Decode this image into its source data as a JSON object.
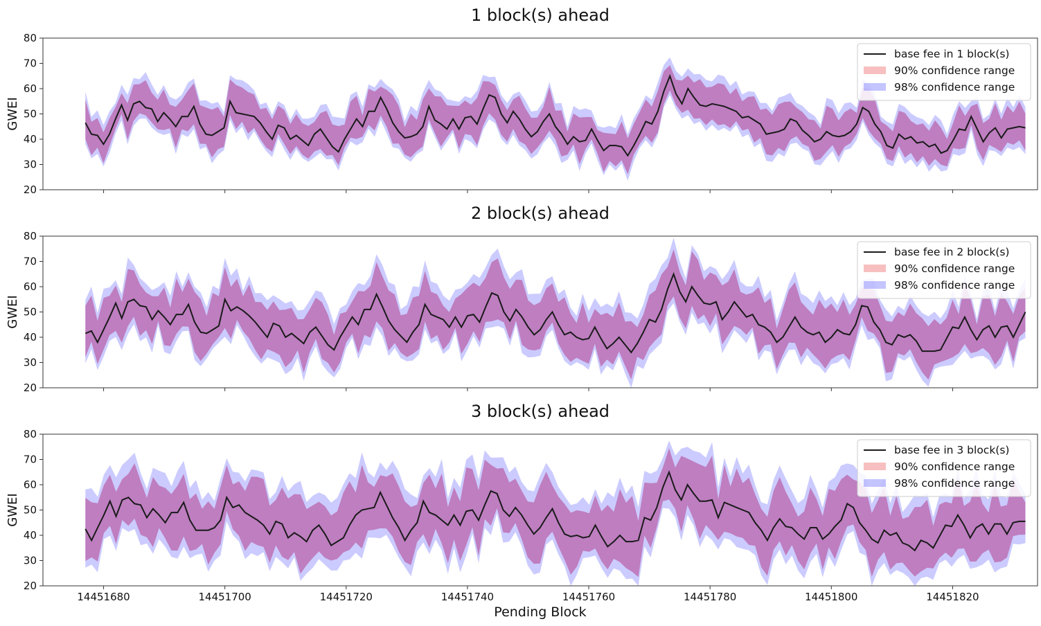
{
  "figure": {
    "xlabel": "Pending Block",
    "xticks": [
      "14451680",
      "14451700",
      "14451720",
      "14451740",
      "14451760",
      "14451780",
      "14451800",
      "14451820"
    ]
  },
  "colors": {
    "line": "#1a1a1a",
    "band90": "#f08080",
    "band98": "#6b6bff",
    "axis": "#333333"
  },
  "chart_data": [
    {
      "type": "line",
      "title": "1 block(s) ahead",
      "ylabel": "GWEI",
      "xlim": [
        14451670,
        14451834
      ],
      "ylim": [
        20,
        80
      ],
      "yticks": [
        20,
        30,
        40,
        50,
        60,
        70,
        80
      ],
      "legend_position": "top-right",
      "legend": [
        "base fee in 1 block(s)",
        "90% confidence range",
        "98% confidence range"
      ],
      "x_start": 14451677,
      "x_end": 14451832,
      "series": [
        {
          "name": "base fee in 1 block(s)",
          "values": [
            46.5,
            42,
            41.5,
            38,
            42,
            48,
            53.5,
            47.5,
            54,
            55,
            52.5,
            52,
            47,
            50.5,
            48,
            45,
            49,
            49,
            53,
            46,
            42,
            41.5,
            43,
            44.5,
            55,
            50.5,
            50,
            49.5,
            49,
            46.5,
            43,
            40,
            45.5,
            44.5,
            40,
            41.5,
            39.5,
            37.5,
            42,
            44,
            40.5,
            37,
            35,
            40,
            44,
            48,
            45,
            51,
            51,
            56.5,
            52,
            46.5,
            43,
            40.5,
            41,
            42,
            45,
            53,
            47.5,
            46,
            44,
            48,
            44,
            48.5,
            49,
            46,
            52,
            57.5,
            56.5,
            50,
            46.5,
            51,
            48,
            44,
            41,
            43,
            47,
            50,
            45,
            42,
            38,
            41,
            39,
            39.5,
            44,
            39.5,
            35.5,
            37.5,
            37.5,
            37,
            33.5,
            37.5,
            42,
            47,
            46,
            51,
            59,
            65,
            58,
            54,
            60,
            56.5,
            53.5,
            53,
            54,
            53.5,
            53,
            52,
            51,
            48.5,
            49,
            47.5,
            46,
            42,
            42.5,
            43,
            44,
            48,
            47,
            43.5,
            41.5,
            39,
            40,
            43,
            41.5,
            41,
            41.5,
            43,
            46,
            52.5,
            51,
            46,
            43,
            37.5,
            36.5,
            42,
            40,
            41,
            38.5,
            39,
            37,
            38,
            34.5,
            35.5,
            39.5,
            44,
            43.5,
            49,
            44,
            39,
            42.5,
            44.5,
            40.5,
            44,
            44.5,
            45,
            44.5
          ]
        }
      ]
    },
    {
      "type": "line",
      "title": "2 block(s) ahead",
      "ylabel": "GWEI",
      "xlim": [
        14451670,
        14451834
      ],
      "ylim": [
        20,
        80
      ],
      "yticks": [
        20,
        30,
        40,
        50,
        60,
        70,
        80
      ],
      "legend_position": "top-right",
      "legend": [
        "base fee in 2 block(s)",
        "90% confidence range",
        "98% confidence range"
      ],
      "x_start": 14451677,
      "x_end": 14451832,
      "series": [
        {
          "name": "base fee in 2 block(s)",
          "values": [
            41.5,
            42.5,
            38,
            43,
            48,
            53.5,
            47.5,
            54,
            55,
            52.5,
            52,
            47,
            50.5,
            48,
            45,
            49,
            49,
            53,
            46,
            42,
            41.5,
            43,
            44.5,
            55,
            50.5,
            52,
            50.5,
            48.5,
            46,
            43,
            40,
            45.5,
            44.5,
            40,
            41.5,
            39.5,
            37.5,
            42,
            44,
            40.5,
            37,
            35,
            40,
            44,
            48,
            45,
            51,
            51,
            57,
            52,
            46.5,
            43,
            40.5,
            38,
            42,
            45,
            53,
            49,
            48,
            47,
            44,
            48,
            44,
            48.5,
            49,
            46,
            52,
            57.5,
            56.5,
            50,
            46.5,
            51,
            48,
            44,
            41,
            43,
            47,
            50,
            45,
            41,
            42,
            40,
            39,
            39.5,
            44,
            39.5,
            35.5,
            37.5,
            40,
            37,
            34,
            37.5,
            42,
            47,
            46,
            51,
            59,
            65,
            58,
            54,
            60,
            56.5,
            53.5,
            53,
            54,
            47,
            50,
            54,
            51,
            48,
            49,
            45,
            44,
            42,
            38,
            40,
            44,
            48,
            44,
            42,
            41,
            42,
            38,
            40,
            43,
            41.5,
            41,
            45,
            52.5,
            52,
            46,
            43,
            38,
            37,
            41,
            40,
            41,
            38.5,
            34.5,
            34.5,
            34.5,
            35,
            39.5,
            44,
            43.5,
            48,
            43,
            39,
            43,
            44.5,
            40,
            44,
            44.5,
            40,
            45,
            50
          ]
        }
      ]
    },
    {
      "type": "line",
      "title": "3 block(s) ahead",
      "ylabel": "GWEI",
      "xlim": [
        14451670,
        14451834
      ],
      "ylim": [
        20,
        80
      ],
      "yticks": [
        20,
        30,
        40,
        50,
        60,
        70,
        80
      ],
      "legend_position": "top-right",
      "legend": [
        "base fee in 3 block(s)",
        "90% confidence range",
        "98% confidence range"
      ],
      "x_start": 14451677,
      "x_end": 14451832,
      "series": [
        {
          "name": "base fee in 3 block(s)",
          "values": [
            42.5,
            38,
            43,
            48,
            53.5,
            47.5,
            54,
            55,
            52.5,
            52,
            47,
            50.5,
            48,
            45,
            49,
            49,
            53,
            46,
            42,
            42,
            42,
            43,
            46,
            55,
            51,
            52,
            49,
            47.5,
            46,
            44,
            40.5,
            45.5,
            44.5,
            39,
            41,
            39.5,
            37.5,
            42,
            44,
            40.5,
            36,
            37.5,
            39,
            44,
            48,
            50,
            50.5,
            51,
            57,
            52,
            47,
            43,
            38,
            42,
            45,
            53.5,
            49,
            48,
            46,
            44,
            48,
            44,
            49.5,
            50,
            46,
            52,
            57.5,
            56.5,
            50,
            47.5,
            51,
            48,
            44,
            40.5,
            43,
            47,
            50.5,
            45,
            40.5,
            39.5,
            40,
            39,
            39.5,
            44,
            39.5,
            35.5,
            37.5,
            40,
            37.5,
            37.5,
            38,
            47,
            46,
            51,
            59,
            65,
            58,
            54,
            60,
            56.5,
            53.5,
            53.5,
            54,
            47,
            53,
            52,
            51,
            50,
            49,
            45,
            42,
            38,
            43,
            46.5,
            43.5,
            43,
            40.5,
            38.5,
            43,
            43,
            38.5,
            40.5,
            43.5,
            46,
            52.5,
            51,
            45,
            42,
            38.5,
            37,
            42,
            40,
            41,
            37,
            36,
            34,
            38,
            37,
            35,
            39.5,
            44,
            43.5,
            48,
            44,
            39,
            43,
            44.5,
            40.5,
            44.5,
            44.5,
            40.5,
            45,
            45.5,
            45.5
          ]
        }
      ]
    }
  ]
}
